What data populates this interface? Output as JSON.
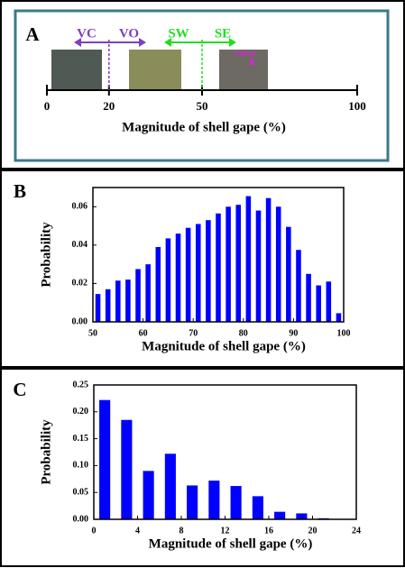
{
  "chart_data": [
    {
      "type": "numberline",
      "panel_label": "A",
      "xlabel": "Magnitude of shell gape (%)",
      "xlim": [
        0,
        100
      ],
      "xticks": [
        0,
        20,
        50,
        100
      ],
      "dividers": [
        {
          "value": 20,
          "color": "#7f3fbf"
        },
        {
          "value": 50,
          "color": "#22dd22"
        }
      ],
      "zones": [
        {
          "name": "VC",
          "color": "#7f3fbf"
        },
        {
          "name": "VO",
          "color": "#7f3fbf"
        },
        {
          "name": "SW",
          "color": "#22dd22"
        },
        {
          "name": "SE",
          "color": "#22dd22"
        }
      ],
      "annotation": "Valves"
    },
    {
      "type": "bar",
      "panel_label": "B",
      "xlabel": "Magnitude of shell gape (%)",
      "ylabel": "Probability",
      "color": "#0000ff",
      "x": [
        51,
        53,
        55,
        57,
        59,
        61,
        63,
        65,
        67,
        69,
        71,
        73,
        75,
        77,
        79,
        81,
        83,
        85,
        87,
        89,
        91,
        93,
        95,
        97,
        99
      ],
      "values": [
        0.0145,
        0.017,
        0.0215,
        0.022,
        0.0275,
        0.03,
        0.039,
        0.0435,
        0.046,
        0.049,
        0.051,
        0.053,
        0.0565,
        0.06,
        0.061,
        0.0655,
        0.058,
        0.0645,
        0.06,
        0.0495,
        0.0375,
        0.025,
        0.019,
        0.021,
        0.0045
      ],
      "xlim": [
        50,
        100
      ],
      "xticks": [
        50,
        60,
        70,
        80,
        90,
        100
      ],
      "ylim": [
        0,
        0.07
      ],
      "yticks": [
        {
          "value": 0,
          "label": "0.00"
        },
        {
          "value": 0.02,
          "label": "0.02"
        },
        {
          "value": 0.04,
          "label": "0.04"
        },
        {
          "value": 0.06,
          "label": "0.06"
        }
      ]
    },
    {
      "type": "bar",
      "panel_label": "C",
      "xlabel": "Magnitude of shell gape (%)",
      "ylabel": "Probability",
      "color": "#0000ff",
      "x": [
        1,
        3,
        5,
        7,
        9,
        11,
        13,
        15,
        17,
        19,
        21
      ],
      "values": [
        0.222,
        0.185,
        0.09,
        0.122,
        0.063,
        0.072,
        0.062,
        0.043,
        0.014,
        0.011,
        0.002
      ],
      "xlim": [
        0,
        24
      ],
      "xticks": [
        0,
        4,
        8,
        12,
        16,
        20,
        24
      ],
      "ylim": [
        0,
        0.25
      ],
      "yticks": [
        {
          "value": 0,
          "label": "0.00"
        },
        {
          "value": 0.05,
          "label": "0.05"
        },
        {
          "value": 0.1,
          "label": "0.10"
        },
        {
          "value": 0.15,
          "label": "0.15"
        },
        {
          "value": 0.2,
          "label": "0.20"
        },
        {
          "value": 0.25,
          "label": "0.25"
        }
      ]
    }
  ]
}
